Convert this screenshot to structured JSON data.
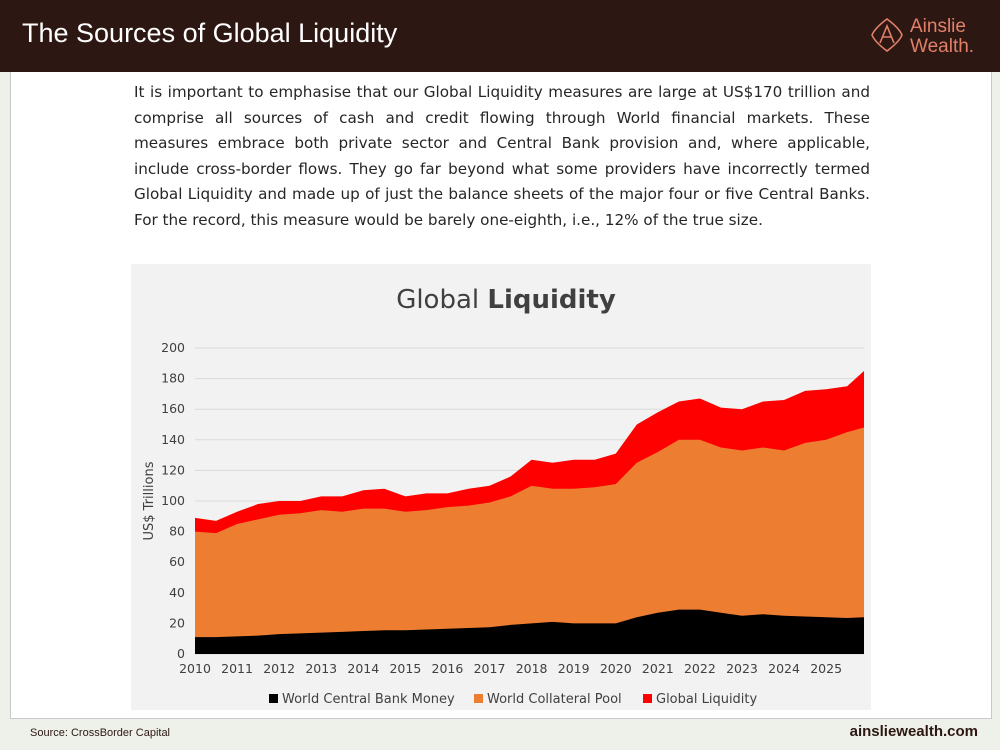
{
  "header": {
    "title": "The Sources of Global Liquidity",
    "logo_line1": "Ainslie",
    "logo_line2": "Wealth."
  },
  "body_text": "It is important to emphasise that our Global Liquidity measures are large at US$170 trillion and comprise all sources of cash and credit flowing through World financial markets. These measures embrace both private sector and Central Bank provision and, where applicable, include cross-border flows. They go far beyond what some providers have incorrectly termed Global Liquidity and made up of just the balance sheets of the major four or five Central Banks. For the record, this measure would be barely one-eighth, i.e., 12% of the true size.",
  "footer": {
    "source": "Source: CrossBorder Capital",
    "url": "ainsliewealth.com"
  },
  "colors": {
    "header_bg": "#2c1712",
    "logo": "#e2806a",
    "cb_money": "#000000",
    "collateral": "#ed7d31",
    "global_liquidity": "#ff0000"
  },
  "chart_data": {
    "type": "area",
    "stacked": true,
    "title": "Global Liquidity",
    "title_plain": "Global ",
    "title_bold": "Liquidity",
    "ylabel": "US$ Trillions",
    "xlabel": "",
    "ylim": [
      0,
      200
    ],
    "yticks": [
      0,
      20,
      40,
      60,
      80,
      100,
      120,
      140,
      160,
      180,
      200
    ],
    "xlim": [
      2010,
      2025.9
    ],
    "xticks": [
      2010,
      2011,
      2012,
      2013,
      2014,
      2015,
      2016,
      2017,
      2018,
      2019,
      2020,
      2021,
      2022,
      2023,
      2024,
      2025
    ],
    "grid": true,
    "legend_position": "bottom",
    "x": [
      2010.0,
      2010.5,
      2011.0,
      2011.5,
      2012.0,
      2012.5,
      2013.0,
      2013.5,
      2014.0,
      2014.5,
      2015.0,
      2015.5,
      2016.0,
      2016.5,
      2017.0,
      2017.5,
      2018.0,
      2018.5,
      2019.0,
      2019.5,
      2020.0,
      2020.5,
      2021.0,
      2021.5,
      2022.0,
      2022.5,
      2023.0,
      2023.5,
      2024.0,
      2024.5,
      2025.0,
      2025.5,
      2025.9
    ],
    "series": [
      {
        "name": "World Central Bank Money",
        "color": "#000000",
        "values": [
          11,
          11,
          11.5,
          12,
          13,
          13.5,
          14,
          14.5,
          15,
          15.5,
          15.5,
          16,
          16.5,
          17,
          17.5,
          19,
          20,
          21,
          20,
          20,
          20,
          24,
          27,
          29,
          29,
          27,
          25,
          26,
          25,
          24.5,
          24,
          23.5,
          24
        ]
      },
      {
        "name": "World Collateral Pool",
        "color": "#ed7d31",
        "values": [
          80,
          79,
          85,
          88,
          91,
          92,
          94,
          93,
          95,
          95,
          93,
          94,
          96,
          97,
          99,
          103,
          110,
          108,
          108,
          109,
          111,
          125,
          132,
          140,
          140,
          135,
          133,
          135,
          133,
          138,
          140,
          145,
          148
        ]
      },
      {
        "name": "Global Liquidity",
        "color": "#ff0000",
        "values": [
          89,
          87,
          93,
          98,
          100,
          100,
          103,
          103,
          107,
          108,
          103,
          105,
          105,
          108,
          110,
          116,
          127,
          125,
          127,
          127,
          131,
          150,
          158,
          165,
          167,
          161,
          160,
          165,
          166,
          172,
          173,
          175,
          185
        ]
      }
    ]
  }
}
